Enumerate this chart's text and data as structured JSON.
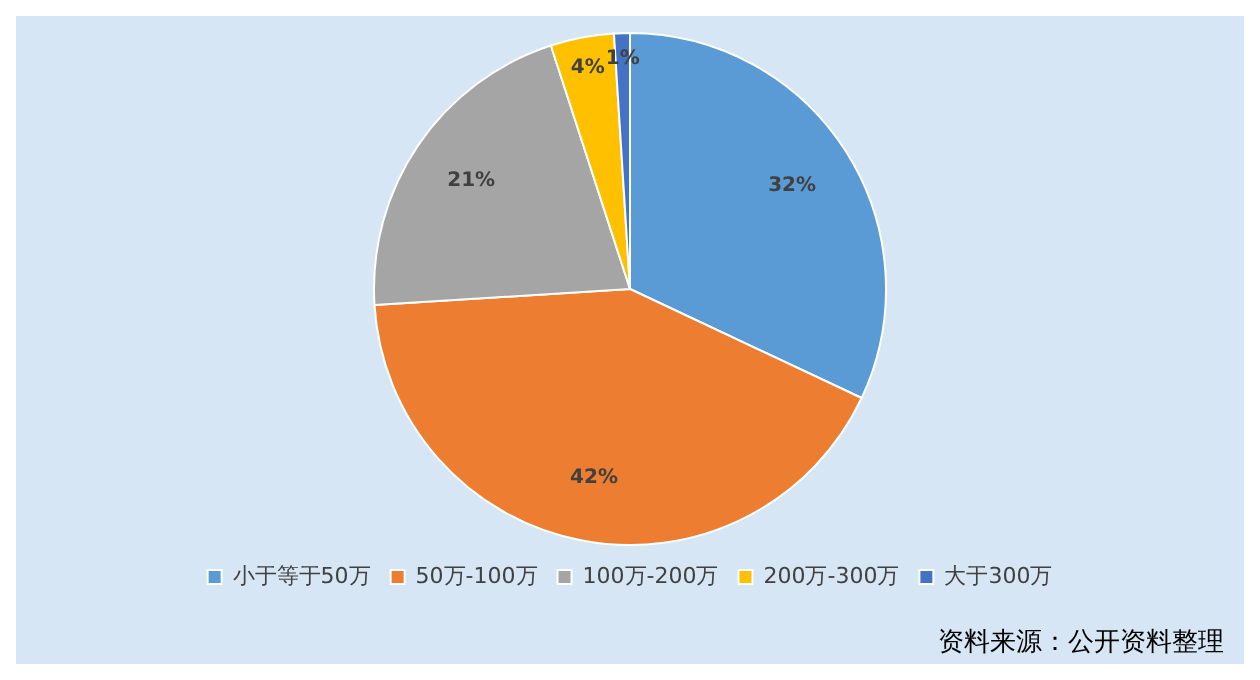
{
  "chart_data": {
    "type": "pie",
    "categories": [
      "小于等于50万",
      "50万-100万",
      "100万-200万",
      "200万-300万",
      "大于300万"
    ],
    "values": [
      32,
      42,
      21,
      4,
      1
    ],
    "colors": [
      "#5b9bd5",
      "#ed7d31",
      "#a5a5a5",
      "#ffc000",
      "#4472c4"
    ],
    "value_labels": [
      "32%",
      "42%",
      "21%",
      "4%",
      "1%"
    ],
    "legend": "bottom",
    "annotations": [
      "资料来源：公开资料整理"
    ]
  }
}
